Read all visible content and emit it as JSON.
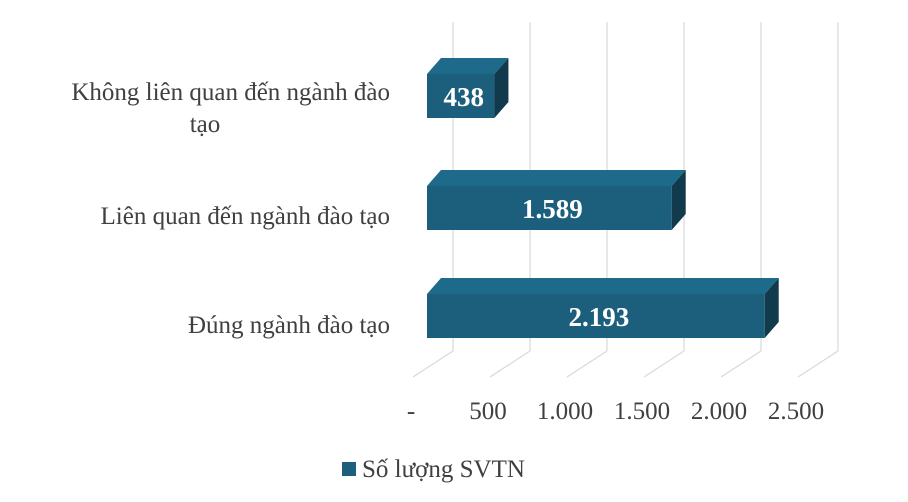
{
  "chart_data": {
    "type": "bar",
    "orientation": "horizontal",
    "three_d": true,
    "categories": [
      "Không liên quan đến ngành đào tạo",
      "Liên quan đến ngành đào tạo",
      "Đúng ngành đào tạo"
    ],
    "category_label_lines": [
      [
        "Không liên quan đến ngành đào",
        "tạo"
      ],
      [
        "Liên quan đến ngành đào tạo"
      ],
      [
        "Đúng ngành đào tạo"
      ]
    ],
    "series": [
      {
        "name": "Số lượng SVTN",
        "values": [
          438,
          1589,
          2193
        ],
        "labels": [
          "438",
          "1.589",
          "2.193"
        ],
        "color": "#1b5f7c"
      }
    ],
    "xlim": [
      0,
      2500
    ],
    "ticks": [
      0,
      500,
      1000,
      1500,
      2000,
      2500
    ],
    "tick_labels": [
      "-",
      "500",
      "1.000",
      "1.500",
      "2.000",
      "2.500"
    ],
    "grid": true,
    "legend_position": "bottom"
  }
}
